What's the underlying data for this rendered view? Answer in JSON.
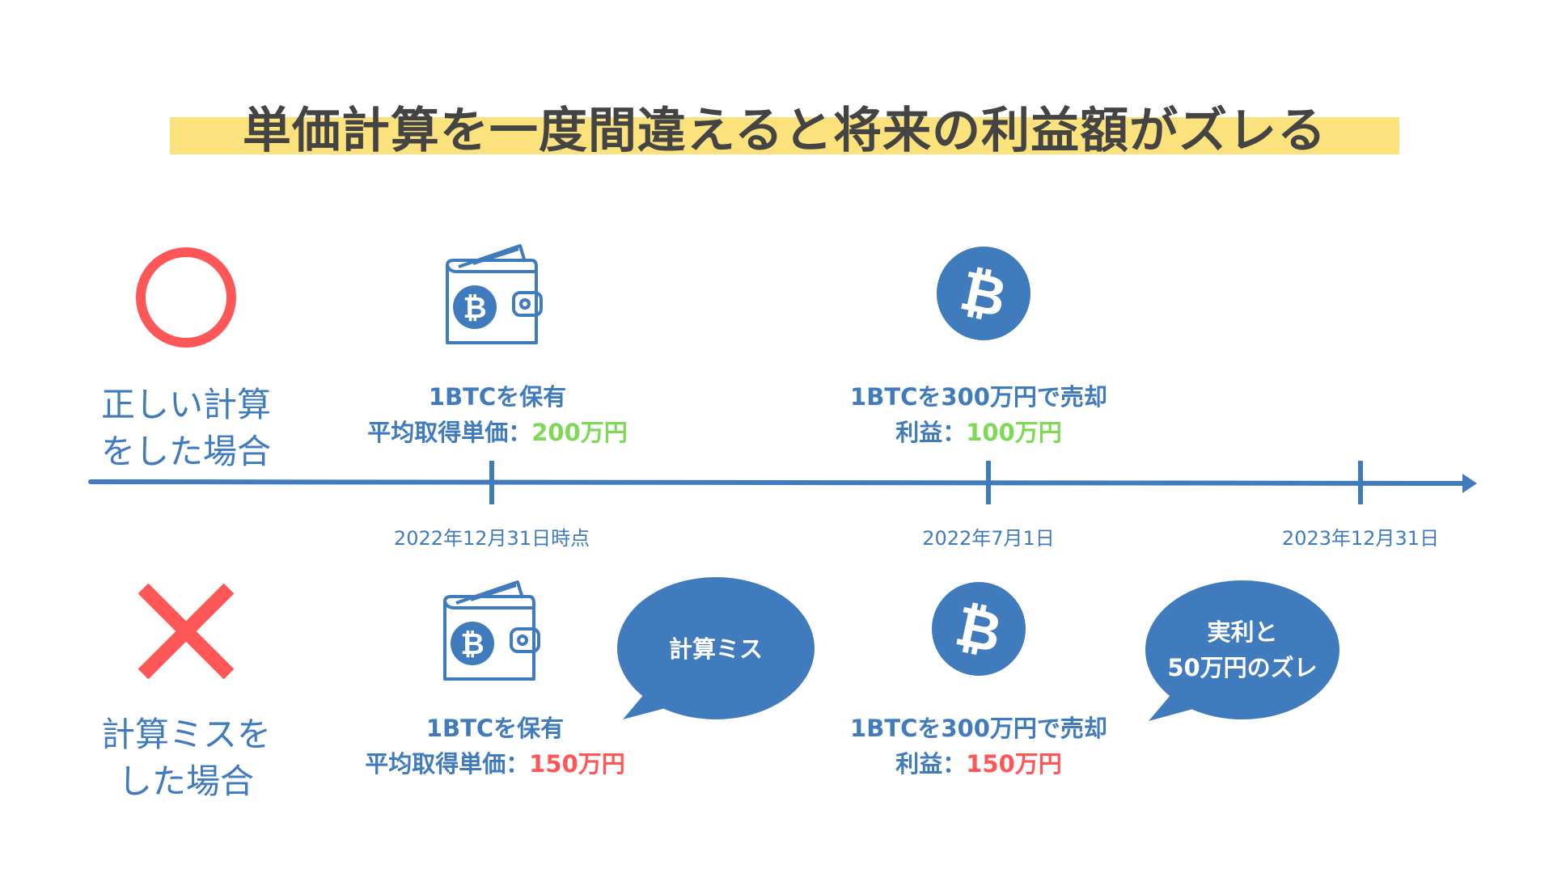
{
  "title": "単価計算を一度間違えると将来の利益額がズレる",
  "colors": {
    "primary": "#3f7bbd",
    "title_highlight": "#fbe27c",
    "good": "#7ed957",
    "bad": "#ff5757",
    "title_text": "#444444"
  },
  "rows": {
    "correct": {
      "icon": "circle-mark-icon",
      "label_line1": "正しい計算",
      "label_line2": "をした場合",
      "holding": {
        "line1": "1BTCを保有",
        "line2_prefix": "平均取得単価：",
        "line2_value": "200万円"
      },
      "sale": {
        "line1": "1BTCを300万円で売却",
        "line2_prefix": "利益：",
        "line2_value": "100万円"
      }
    },
    "mistake": {
      "icon": "cross-mark-icon",
      "label_line1": "計算ミスを",
      "label_line2": "した場合",
      "holding": {
        "line1": "1BTCを保有",
        "line2_prefix": "平均取得単価：",
        "line2_value": "150万円"
      },
      "sale": {
        "line1": "1BTCを300万円で売却",
        "line2_prefix": "利益：",
        "line2_value": "150万円"
      },
      "bubble1": "計算ミス",
      "bubble2_line1": "実利と",
      "bubble2_line2": "50万円のズレ"
    }
  },
  "timeline": {
    "dates": [
      "2022年12月31日時点",
      "2022年7月1日",
      "2023年12月31日"
    ]
  }
}
